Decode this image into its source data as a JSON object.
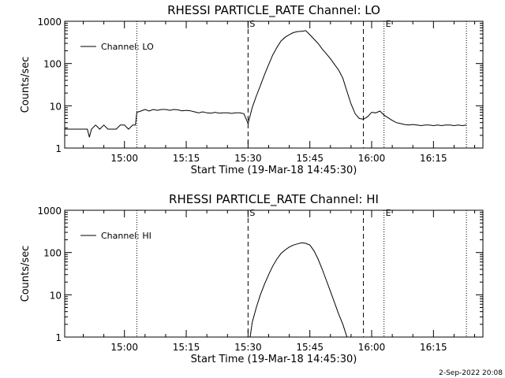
{
  "footer_timestamp": "2-Sep-2022 20:08",
  "chart_data": [
    {
      "type": "line",
      "title": "RHESSI PARTICLE_RATE Channel: LO",
      "xlabel": "Start Time (19-Mar-18 14:45:30)",
      "ylabel": "Counts/sec",
      "y_scale": "log",
      "ylim": [
        1,
        1000
      ],
      "y_ticks": [
        {
          "value": 1,
          "label": "1"
        },
        {
          "value": 10,
          "label": "10"
        },
        {
          "value": 100,
          "label": "100"
        },
        {
          "value": 1000,
          "label": "1000"
        }
      ],
      "xlim": [
        "14:45:30",
        "16:27:00"
      ],
      "x_ticks": [
        {
          "value": "15:00",
          "label": "15:00"
        },
        {
          "value": "15:15",
          "label": "15:15"
        },
        {
          "value": "15:30",
          "label": "15:30"
        },
        {
          "value": "15:45",
          "label": "15:45"
        },
        {
          "value": "16:00",
          "label": "16:00"
        },
        {
          "value": "16:15",
          "label": "16:15"
        }
      ],
      "legend": {
        "position": "top-left",
        "entries": [
          "Channel: LO"
        ]
      },
      "dashed_markers": [
        {
          "x": "15:30:00",
          "label": "S"
        },
        {
          "x": "15:58:00",
          "label": ""
        }
      ],
      "dotted_markers": [
        {
          "x": "15:03:00",
          "label": ""
        },
        {
          "x": "16:03:00",
          "label": "E"
        },
        {
          "x": "16:23:00",
          "label": ""
        }
      ],
      "series": [
        {
          "name": "Channel: LO",
          "x": [
            "14:45:30",
            "14:48:00",
            "14:50:00",
            "14:51:00",
            "14:51:30",
            "14:52:00",
            "14:53:00",
            "14:54:00",
            "14:55:00",
            "14:56:00",
            "14:57:00",
            "14:58:00",
            "14:59:00",
            "15:00:00",
            "15:01:00",
            "15:02:00",
            "15:02:40",
            "15:03:00",
            "15:04:00",
            "15:05:00",
            "15:06:00",
            "15:07:00",
            "15:08:00",
            "15:09:00",
            "15:10:00",
            "15:11:00",
            "15:12:00",
            "15:13:00",
            "15:14:00",
            "15:15:00",
            "15:16:00",
            "15:17:00",
            "15:18:00",
            "15:19:00",
            "15:20:00",
            "15:21:00",
            "15:22:00",
            "15:23:00",
            "15:24:00",
            "15:25:00",
            "15:26:00",
            "15:27:00",
            "15:28:00",
            "15:29:00",
            "15:30:00",
            "15:31:00",
            "15:32:00",
            "15:33:00",
            "15:34:00",
            "15:35:00",
            "15:36:00",
            "15:37:00",
            "15:38:00",
            "15:39:00",
            "15:40:00",
            "15:41:00",
            "15:42:00",
            "15:43:00",
            "15:44:00",
            "15:45:00",
            "15:46:00",
            "15:47:00",
            "15:48:00",
            "15:49:00",
            "15:50:00",
            "15:51:00",
            "15:52:00",
            "15:53:00",
            "15:54:00",
            "15:55:00",
            "15:56:00",
            "15:57:00",
            "15:58:00",
            "15:59:00",
            "16:00:00",
            "16:01:00",
            "16:02:00",
            "16:03:00",
            "16:04:00",
            "16:05:00",
            "16:06:00",
            "16:07:00",
            "16:08:00",
            "16:09:00",
            "16:10:00",
            "16:11:00",
            "16:12:00",
            "16:13:00",
            "16:14:00",
            "16:15:00",
            "16:16:00",
            "16:17:00",
            "16:18:00",
            "16:19:00",
            "16:20:00",
            "16:21:00",
            "16:22:00",
            "16:23:00"
          ],
          "values": [
            2.8,
            2.8,
            2.8,
            2.8,
            1.8,
            2.8,
            3.5,
            2.8,
            3.5,
            2.8,
            2.8,
            2.8,
            3.5,
            3.5,
            2.8,
            3.5,
            3.5,
            7,
            7.5,
            8.2,
            7.5,
            8.2,
            7.8,
            8.2,
            8.2,
            7.8,
            8.2,
            8,
            7.6,
            7.8,
            7.6,
            7.2,
            6.8,
            7.2,
            6.8,
            6.7,
            7,
            6.7,
            6.8,
            6.8,
            6.6,
            6.8,
            6.8,
            6.5,
            3.8,
            9,
            17,
            30,
            55,
            95,
            160,
            240,
            340,
            420,
            480,
            540,
            570,
            580,
            600,
            480,
            380,
            300,
            220,
            170,
            130,
            95,
            70,
            45,
            22,
            11,
            6.5,
            5,
            4.8,
            5.5,
            7,
            6.8,
            7.5,
            6,
            5.2,
            4.5,
            4,
            3.8,
            3.6,
            3.5,
            3.6,
            3.5,
            3.4,
            3.5,
            3.5,
            3.4,
            3.5,
            3.4,
            3.5,
            3.5,
            3.4,
            3.5,
            3.4,
            3.5
          ]
        }
      ]
    },
    {
      "type": "line",
      "title": "RHESSI PARTICLE_RATE Channel: HI",
      "xlabel": "Start Time (19-Mar-18 14:45:30)",
      "ylabel": "Counts/sec",
      "y_scale": "log",
      "ylim": [
        1,
        1000
      ],
      "y_ticks": [
        {
          "value": 1,
          "label": "1"
        },
        {
          "value": 10,
          "label": "10"
        },
        {
          "value": 100,
          "label": "100"
        },
        {
          "value": 1000,
          "label": "1000"
        }
      ],
      "xlim": [
        "14:45:30",
        "16:27:00"
      ],
      "x_ticks": [
        {
          "value": "15:00",
          "label": "15:00"
        },
        {
          "value": "15:15",
          "label": "15:15"
        },
        {
          "value": "15:30",
          "label": "15:30"
        },
        {
          "value": "15:45",
          "label": "15:45"
        },
        {
          "value": "16:00",
          "label": "16:00"
        },
        {
          "value": "16:15",
          "label": "16:15"
        }
      ],
      "legend": {
        "position": "top-left",
        "entries": [
          "Channel: HI"
        ]
      },
      "dashed_markers": [
        {
          "x": "15:30:00",
          "label": "S"
        },
        {
          "x": "15:58:00",
          "label": ""
        }
      ],
      "dotted_markers": [
        {
          "x": "15:03:00",
          "label": ""
        },
        {
          "x": "16:03:00",
          "label": "E"
        },
        {
          "x": "16:23:00",
          "label": ""
        }
      ],
      "series": [
        {
          "name": "Channel: HI",
          "x": [
            "15:30:30",
            "15:31:00",
            "15:32:00",
            "15:33:00",
            "15:34:00",
            "15:35:00",
            "15:36:00",
            "15:37:00",
            "15:38:00",
            "15:39:00",
            "15:40:00",
            "15:41:00",
            "15:42:00",
            "15:43:00",
            "15:44:00",
            "15:45:00",
            "15:46:00",
            "15:47:00",
            "15:48:00",
            "15:49:00",
            "15:50:00",
            "15:51:00",
            "15:52:00",
            "15:53:00",
            "15:54:00"
          ],
          "values": [
            1,
            2.2,
            5,
            10,
            18,
            30,
            48,
            70,
            95,
            115,
            135,
            150,
            160,
            170,
            165,
            150,
            110,
            70,
            40,
            22,
            12,
            6.5,
            3.5,
            2,
            1
          ]
        }
      ]
    }
  ]
}
